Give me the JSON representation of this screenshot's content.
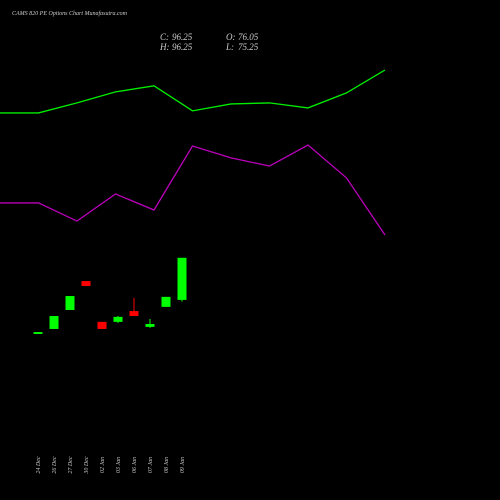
{
  "chart_data": [
    {
      "type": "candlestick",
      "title": "CAMS 820  PE Options  Chart Munafasutra.com",
      "ohlc": [
        {
          "label": "C:",
          "value": 96.25
        },
        {
          "label": "H:",
          "value": 96.25
        },
        {
          "label": "O:",
          "value": 76.05
        },
        {
          "label": "L:",
          "value": 75.25
        }
      ],
      "categories": [
        "24 Dec",
        "26 Dec",
        "27 Dec",
        "30 Dec",
        "02 Jan",
        "03 Jan",
        "06 Jan",
        "07 Jan",
        "08 Jan",
        "09 Jan"
      ],
      "open": [
        59.7,
        62.1,
        71.2,
        85.1,
        65.5,
        65.5,
        70.7,
        63.1,
        72.7,
        76.05
      ],
      "high": [
        60.6,
        68.3,
        77.9,
        85.1,
        65.5,
        68.3,
        77.0,
        66.9,
        77.5,
        96.25
      ],
      "low": [
        59.7,
        62.1,
        71.2,
        82.7,
        62.1,
        65.0,
        68.3,
        62.6,
        72.7,
        75.25
      ],
      "close": [
        60.6,
        68.3,
        77.9,
        82.7,
        62.1,
        67.9,
        68.3,
        64.5,
        77.5,
        96.25
      ],
      "up_color": "#00ff00",
      "down_color": "#ff0000",
      "ylim": [
        -20,
        220
      ]
    },
    {
      "type": "line",
      "categories": [
        null,
        null,
        null,
        null,
        null,
        null,
        null,
        null,
        null,
        null,
        null
      ],
      "series": [
        {
          "color": "#00ee00",
          "values": [
            165.8,
            165.8,
            170.6,
            175.9,
            178.8,
            166.8,
            170.1,
            170.6,
            168.2,
            175.4,
            186.4
          ]
        },
        {
          "color": "#bb00bb",
          "values": [
            122.6,
            122.6,
            113.9,
            126.9,
            119.2,
            149.9,
            144.2,
            140.3,
            150.4,
            134.6,
            107.2
          ]
        }
      ],
      "ylim": [
        -20,
        220
      ]
    }
  ]
}
